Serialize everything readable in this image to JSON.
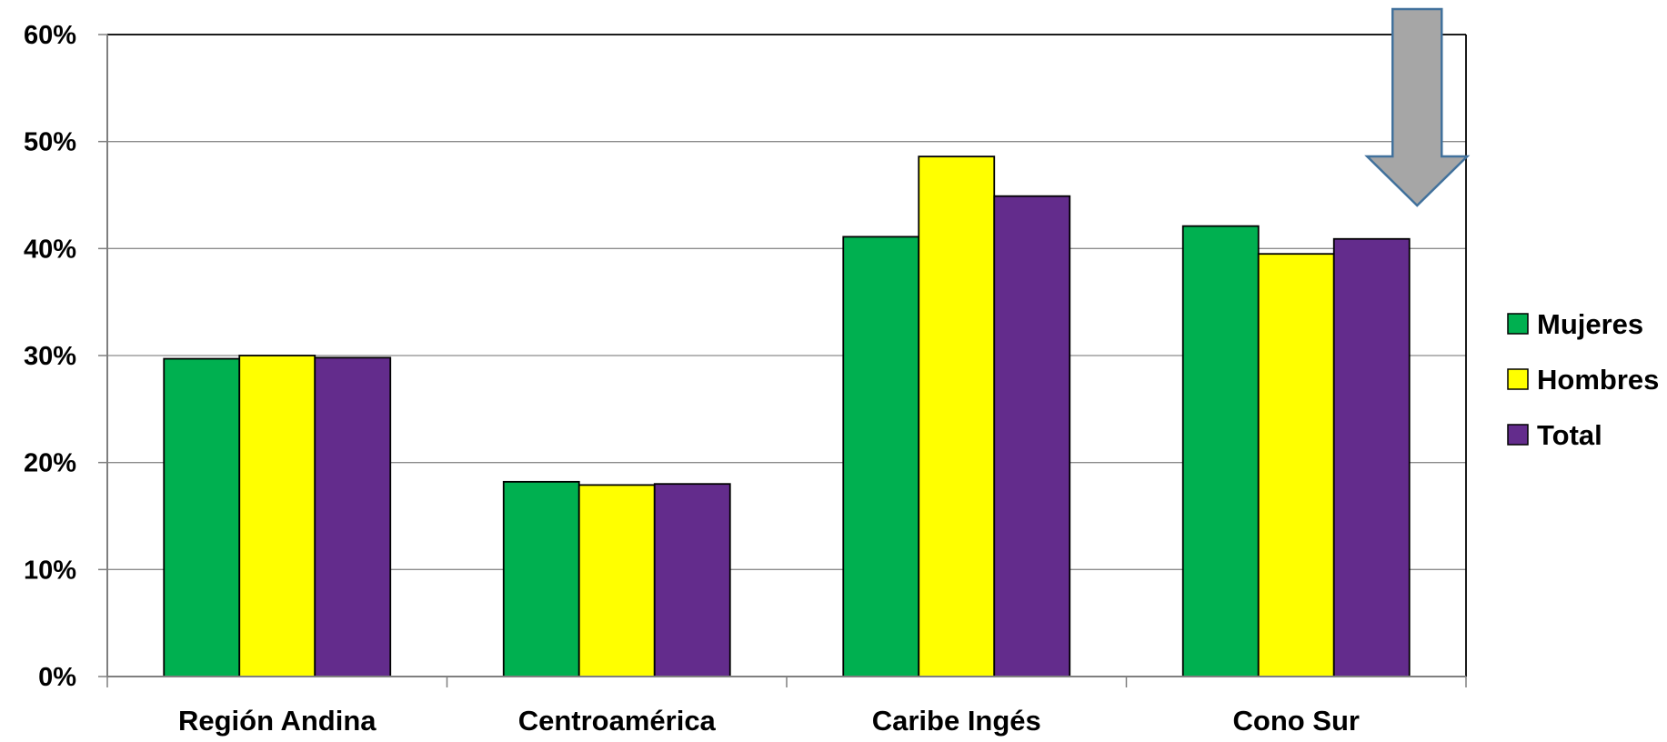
{
  "chart_data": {
    "type": "bar",
    "title": "",
    "xlabel": "",
    "ylabel": "",
    "categories": [
      "Región Andina",
      "Centroamérica",
      "Caribe Ingés",
      "Cono Sur"
    ],
    "series": [
      {
        "name": "Mujeres",
        "color": "#00B050",
        "values": [
          29.7,
          18.2,
          41.1,
          42.1
        ]
      },
      {
        "name": "Hombres",
        "color": "#FFFF00",
        "values": [
          30.0,
          17.9,
          48.6,
          39.5
        ]
      },
      {
        "name": "Total",
        "color": "#632C8C",
        "values": [
          29.8,
          18.0,
          44.9,
          40.9
        ]
      }
    ],
    "ylim": [
      0,
      60
    ],
    "yticks": [
      0,
      10,
      20,
      30,
      40,
      50,
      60
    ],
    "ytick_labels": [
      "0%",
      "10%",
      "20%",
      "30%",
      "40%",
      "50%",
      "60%"
    ],
    "grid": true,
    "legend_position": "right",
    "annotation": {
      "type": "arrow",
      "shape": "block-arrow-down",
      "points_to": "Cono Sur",
      "color": "#A6A6A6",
      "border_color": "#41719C"
    }
  }
}
